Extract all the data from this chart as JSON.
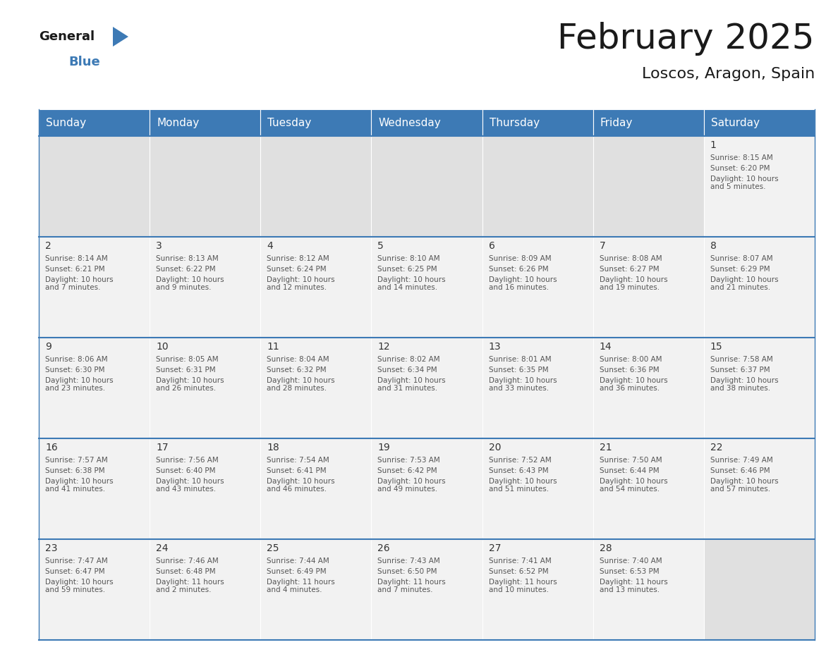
{
  "title": "February 2025",
  "subtitle": "Loscos, Aragon, Spain",
  "header_color": "#3d7ab5",
  "header_text_color": "#ffffff",
  "days_of_week": [
    "Sunday",
    "Monday",
    "Tuesday",
    "Wednesday",
    "Thursday",
    "Friday",
    "Saturday"
  ],
  "calendar": [
    [
      null,
      null,
      null,
      null,
      null,
      null,
      {
        "day": 1,
        "sunrise": "8:15 AM",
        "sunset": "6:20 PM",
        "daylight": "10 hours\nand 5 minutes."
      }
    ],
    [
      {
        "day": 2,
        "sunrise": "8:14 AM",
        "sunset": "6:21 PM",
        "daylight": "10 hours\nand 7 minutes."
      },
      {
        "day": 3,
        "sunrise": "8:13 AM",
        "sunset": "6:22 PM",
        "daylight": "10 hours\nand 9 minutes."
      },
      {
        "day": 4,
        "sunrise": "8:12 AM",
        "sunset": "6:24 PM",
        "daylight": "10 hours\nand 12 minutes."
      },
      {
        "day": 5,
        "sunrise": "8:10 AM",
        "sunset": "6:25 PM",
        "daylight": "10 hours\nand 14 minutes."
      },
      {
        "day": 6,
        "sunrise": "8:09 AM",
        "sunset": "6:26 PM",
        "daylight": "10 hours\nand 16 minutes."
      },
      {
        "day": 7,
        "sunrise": "8:08 AM",
        "sunset": "6:27 PM",
        "daylight": "10 hours\nand 19 minutes."
      },
      {
        "day": 8,
        "sunrise": "8:07 AM",
        "sunset": "6:29 PM",
        "daylight": "10 hours\nand 21 minutes."
      }
    ],
    [
      {
        "day": 9,
        "sunrise": "8:06 AM",
        "sunset": "6:30 PM",
        "daylight": "10 hours\nand 23 minutes."
      },
      {
        "day": 10,
        "sunrise": "8:05 AM",
        "sunset": "6:31 PM",
        "daylight": "10 hours\nand 26 minutes."
      },
      {
        "day": 11,
        "sunrise": "8:04 AM",
        "sunset": "6:32 PM",
        "daylight": "10 hours\nand 28 minutes."
      },
      {
        "day": 12,
        "sunrise": "8:02 AM",
        "sunset": "6:34 PM",
        "daylight": "10 hours\nand 31 minutes."
      },
      {
        "day": 13,
        "sunrise": "8:01 AM",
        "sunset": "6:35 PM",
        "daylight": "10 hours\nand 33 minutes."
      },
      {
        "day": 14,
        "sunrise": "8:00 AM",
        "sunset": "6:36 PM",
        "daylight": "10 hours\nand 36 minutes."
      },
      {
        "day": 15,
        "sunrise": "7:58 AM",
        "sunset": "6:37 PM",
        "daylight": "10 hours\nand 38 minutes."
      }
    ],
    [
      {
        "day": 16,
        "sunrise": "7:57 AM",
        "sunset": "6:38 PM",
        "daylight": "10 hours\nand 41 minutes."
      },
      {
        "day": 17,
        "sunrise": "7:56 AM",
        "sunset": "6:40 PM",
        "daylight": "10 hours\nand 43 minutes."
      },
      {
        "day": 18,
        "sunrise": "7:54 AM",
        "sunset": "6:41 PM",
        "daylight": "10 hours\nand 46 minutes."
      },
      {
        "day": 19,
        "sunrise": "7:53 AM",
        "sunset": "6:42 PM",
        "daylight": "10 hours\nand 49 minutes."
      },
      {
        "day": 20,
        "sunrise": "7:52 AM",
        "sunset": "6:43 PM",
        "daylight": "10 hours\nand 51 minutes."
      },
      {
        "day": 21,
        "sunrise": "7:50 AM",
        "sunset": "6:44 PM",
        "daylight": "10 hours\nand 54 minutes."
      },
      {
        "day": 22,
        "sunrise": "7:49 AM",
        "sunset": "6:46 PM",
        "daylight": "10 hours\nand 57 minutes."
      }
    ],
    [
      {
        "day": 23,
        "sunrise": "7:47 AM",
        "sunset": "6:47 PM",
        "daylight": "10 hours\nand 59 minutes."
      },
      {
        "day": 24,
        "sunrise": "7:46 AM",
        "sunset": "6:48 PM",
        "daylight": "11 hours\nand 2 minutes."
      },
      {
        "day": 25,
        "sunrise": "7:44 AM",
        "sunset": "6:49 PM",
        "daylight": "11 hours\nand 4 minutes."
      },
      {
        "day": 26,
        "sunrise": "7:43 AM",
        "sunset": "6:50 PM",
        "daylight": "11 hours\nand 7 minutes."
      },
      {
        "day": 27,
        "sunrise": "7:41 AM",
        "sunset": "6:52 PM",
        "daylight": "11 hours\nand 10 minutes."
      },
      {
        "day": 28,
        "sunrise": "7:40 AM",
        "sunset": "6:53 PM",
        "daylight": "11 hours\nand 13 minutes."
      },
      null
    ]
  ],
  "cell_bg_color": "#f2f2f2",
  "empty_cell_bg_color": "#e0e0e0",
  "header_bg_color": "#3d7ab5",
  "border_color": "#3d7ab5",
  "cell_border_color": "#ffffff",
  "day_number_color": "#333333",
  "text_color": "#555555",
  "background_color": "#ffffff",
  "logo_general_color": "#1a1a1a",
  "logo_blue_color": "#3d7ab5",
  "title_fontsize": 36,
  "subtitle_fontsize": 16,
  "header_fontsize": 11,
  "day_num_fontsize": 10,
  "cell_text_fontsize": 7.5
}
